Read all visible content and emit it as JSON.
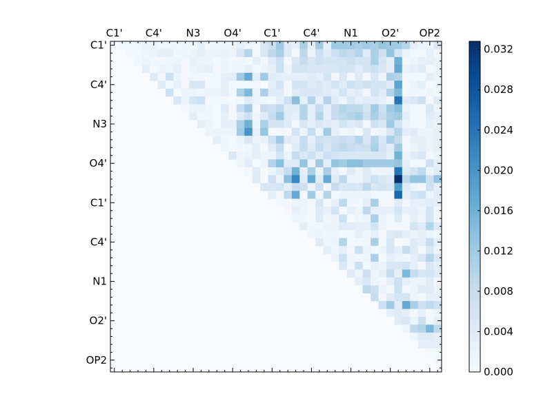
{
  "chart_data": {
    "type": "heatmap",
    "title": "",
    "xlabel": "",
    "ylabel": "",
    "n": 42,
    "tick_every": 5,
    "x_tick_labels": [
      "C1'",
      "C4'",
      "N3",
      "O4'",
      "C1'",
      "C4'",
      "N1",
      "O2'",
      "OP2"
    ],
    "y_tick_labels": [
      "C1'",
      "C4'",
      "N3",
      "O4'",
      "C1'",
      "C4'",
      "N1",
      "O2'",
      "OP2"
    ],
    "colormap": "Blues",
    "vmin": 0,
    "vmax": 0.0328,
    "colorbar_ticks": [
      "0.000",
      "0.004",
      "0.008",
      "0.012",
      "0.016",
      "0.020",
      "0.024",
      "0.028",
      "0.032"
    ],
    "value_unit_note": "upper-triangle rows, values in thousandths (x0.001), row i lists columns i+1..41; lower triangle and diagonal are 0",
    "upper_rows_milli": [
      [
        1,
        1,
        1,
        2,
        2,
        1,
        1,
        1,
        1,
        1,
        3,
        1,
        1,
        1,
        1,
        3,
        2,
        1,
        5,
        7,
        12,
        4,
        3,
        11,
        3,
        12,
        3,
        12,
        12,
        12,
        11,
        12,
        11,
        13,
        12,
        12,
        10,
        3,
        2,
        2,
        5
      ],
      [
        1,
        1,
        1.5,
        2,
        3,
        3,
        1,
        1.5,
        2,
        3,
        2,
        2,
        2.5,
        2,
        5,
        10,
        1,
        5,
        9,
        11,
        4,
        1,
        9,
        2,
        7,
        4,
        7,
        9,
        8,
        10,
        4,
        11,
        7,
        13,
        6,
        2,
        1,
        1,
        3,
        1
      ],
      [
        1,
        2,
        1,
        1,
        1.5,
        2,
        1,
        2.5,
        2,
        2,
        0.5,
        2,
        1,
        1,
        1,
        3,
        1,
        4,
        7,
        1,
        5,
        8,
        5,
        7,
        6,
        6,
        6,
        7,
        6,
        6,
        11,
        6,
        3,
        16,
        1,
        2,
        3,
        3,
        2
      ],
      [
        3,
        1,
        2,
        1.5,
        3,
        1,
        2,
        2.5,
        3,
        1,
        2,
        1.5,
        1.5,
        3,
        1,
        2,
        3,
        7,
        2,
        6,
        6,
        5,
        5,
        5,
        5,
        6,
        6,
        4,
        6,
        7,
        5,
        3,
        17,
        2,
        3,
        4,
        1,
        2
      ],
      [
        4,
        1,
        7,
        2,
        1,
        1.5,
        1,
        0.5,
        1,
        3,
        3.5,
        12,
        17,
        3,
        12,
        4,
        3,
        3,
        3,
        3,
        4,
        3,
        6,
        1,
        5,
        1,
        4,
        1,
        5,
        2,
        11,
        10,
        1,
        1,
        1,
        3,
        2
      ],
      [
        4,
        1,
        3,
        1,
        5,
        5,
        1,
        1,
        3,
        1,
        1,
        1,
        1,
        0,
        3,
        6,
        1,
        6,
        6,
        4,
        5,
        4,
        6,
        4,
        7,
        6,
        7,
        6,
        6,
        4,
        18,
        1,
        2,
        3,
        1,
        2
      ],
      [
        7,
        0.5,
        2,
        2,
        1.5,
        2,
        2,
        3,
        1,
        11,
        15,
        2,
        11,
        4,
        4,
        1,
        4,
        5,
        5,
        5,
        4,
        3,
        6,
        3,
        4,
        1,
        6,
        4,
        10,
        15,
        1,
        1,
        1,
        2,
        1
      ],
      [
        5,
        2,
        6,
        7,
        1,
        1,
        1,
        0.5,
        1,
        4,
        2,
        1.5,
        1,
        3,
        7,
        14,
        3,
        10,
        3,
        10,
        4,
        2,
        5,
        3,
        4,
        4,
        3,
        1,
        24,
        4,
        5,
        7,
        1,
        4
      ],
      [
        1,
        2,
        2,
        1,
        0.5,
        4,
        1,
        8,
        12,
        1,
        8,
        7,
        9,
        4,
        4,
        10,
        3,
        8,
        3,
        8,
        10,
        9,
        9,
        6,
        12,
        7,
        12,
        14,
        2,
        1,
        1,
        5,
        2
      ],
      [
        3,
        1,
        1,
        0.5,
        3,
        1,
        4,
        7,
        1.5,
        4,
        8,
        12,
        4,
        3,
        10,
        3,
        10,
        3,
        8,
        9,
        10,
        11,
        7,
        11,
        8,
        11,
        12,
        3,
        1,
        1,
        4,
        3
      ],
      [
        3,
        2,
        0.5,
        3,
        3,
        11,
        16,
        2,
        11,
        6,
        6,
        4,
        1,
        5,
        3,
        5,
        4,
        3,
        6,
        4,
        5,
        1,
        7,
        5,
        12,
        6,
        2,
        1,
        1,
        3,
        2
      ],
      [
        2,
        2,
        2,
        2,
        12,
        20,
        3,
        13,
        0.5,
        1,
        1,
        6,
        2,
        8,
        2,
        12,
        3,
        1,
        2,
        0.5,
        5,
        1,
        2,
        5,
        10,
        3,
        4,
        2,
        2,
        3
      ],
      [
        3,
        1.5,
        0.5,
        2,
        5,
        2,
        2.5,
        7,
        12,
        4,
        3,
        8,
        3,
        7,
        6,
        7,
        8,
        7,
        10,
        5,
        10,
        5,
        11,
        8,
        1,
        3,
        3,
        2,
        3
      ],
      [
        1.5,
        1,
        1,
        1.5,
        3,
        1,
        4,
        8,
        1,
        4,
        8,
        4,
        8,
        5,
        8,
        9,
        8,
        7,
        7,
        11,
        6,
        4,
        12,
        1,
        2,
        3,
        2,
        3
      ],
      [
        5,
        1.5,
        2,
        3,
        2,
        2,
        6,
        2,
        8,
        5,
        7,
        4,
        7,
        6,
        5,
        5,
        5,
        5,
        5,
        5,
        3,
        16,
        2,
        4,
        5,
        1,
        2
      ],
      [
        1.5,
        4,
        0.5,
        2,
        10,
        14,
        4,
        4,
        13,
        2,
        12,
        3,
        13,
        12,
        14,
        14,
        12,
        12,
        12,
        12,
        13,
        3,
        1,
        1,
        7,
        3
      ],
      [
        1,
        4,
        0.5,
        2,
        4,
        8,
        16,
        3,
        11,
        2,
        11,
        3,
        1,
        4,
        2,
        4,
        2,
        2,
        2,
        24,
        4,
        6,
        9,
        2,
        4
      ],
      [
        4,
        0.5,
        7,
        2,
        14,
        22,
        4,
        17,
        4,
        17,
        4,
        9,
        2,
        2,
        4,
        7,
        5,
        4,
        33,
        9,
        13,
        13,
        7,
        13
      ],
      [
        5,
        5,
        6,
        3,
        8,
        7,
        2,
        7,
        1,
        8,
        5,
        6,
        5,
        9,
        5,
        6,
        5,
        19,
        4,
        2,
        1,
        7,
        3
      ],
      [
        3,
        1,
        9,
        17,
        1,
        12,
        1,
        10,
        1,
        2,
        2,
        2,
        2,
        1,
        1,
        1,
        26,
        3,
        6,
        7,
        2,
        4
      ],
      [
        1,
        1,
        2,
        2,
        1,
        5,
        1,
        3,
        9,
        1,
        1,
        3,
        11,
        1,
        1,
        4,
        1,
        3,
        3,
        4,
        3
      ],
      [
        1,
        3,
        2,
        1,
        4,
        3,
        6,
        1,
        3,
        2,
        9,
        3,
        3,
        3,
        6,
        3,
        3,
        2,
        6,
        1
      ],
      [
        1.5,
        1.5,
        1,
        4,
        1.5,
        2,
        7,
        0.5,
        1.5,
        2,
        11,
        2,
        1,
        4,
        1,
        3,
        1.5,
        6,
        1
      ],
      [
        3,
        1,
        1,
        2,
        2,
        4,
        4,
        3,
        3,
        6,
        2,
        1,
        1,
        1,
        6,
        4,
        10,
        4
      ],
      [
        1.5,
        2,
        1.5,
        1.5,
        1,
        1,
        3,
        1.5,
        3,
        1,
        4,
        5,
        3,
        2,
        3,
        2,
        1
      ],
      [
        4,
        1.5,
        2,
        10,
        0.5,
        1,
        1,
        11,
        0.5,
        5,
        0.5,
        1,
        4,
        3,
        8,
        3
      ],
      [
        3,
        1.5,
        3,
        1,
        7,
        2,
        1,
        2,
        5,
        3,
        8,
        4,
        1,
        5,
        2
      ],
      [
        2,
        7,
        1.5,
        1.5,
        1.5,
        11,
        0.5,
        3,
        2,
        1.5,
        3,
        5,
        10,
        5
      ],
      [
        5,
        1.5,
        7,
        1,
        3,
        2,
        5,
        5,
        6,
        3,
        1,
        5,
        3
      ],
      [
        4,
        2,
        7,
        1.5,
        3,
        8,
        3,
        15,
        8,
        5,
        6,
        4
      ],
      [
        3,
        5,
        2,
        1,
        3,
        7,
        3,
        2,
        2,
        4,
        1
      ],
      [
        9,
        7,
        2,
        1,
        7,
        1,
        2,
        4,
        4,
        2
      ],
      [
        8,
        1,
        4,
        6,
        6,
        2,
        1,
        3,
        3
      ],
      [
        7,
        12,
        4,
        17,
        11,
        7,
        9,
        7
      ],
      [
        3,
        4,
        3,
        1,
        3,
        1,
        2
      ],
      [
        4,
        5,
        2,
        7,
        1,
        3
      ],
      [
        1.5,
        9,
        10,
        15,
        9
      ],
      [
        1.5,
        4,
        4,
        3
      ],
      [
        3,
        3,
        3
      ],
      [
        0.5,
        0.5
      ],
      [
        1
      ],
      []
    ]
  }
}
